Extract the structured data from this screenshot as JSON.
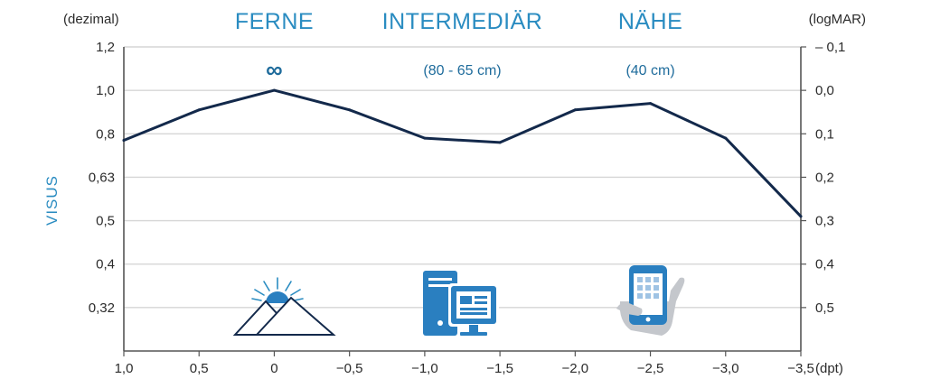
{
  "chart_data": {
    "type": "line",
    "ylabel": "VISUS",
    "left_axis_unit": "(dezimal)",
    "right_axis_unit": "(logMAR)",
    "x_unit": "(dpt)",
    "x_ticks": [
      "1,0",
      "0,5",
      "0",
      "−0,5",
      "−1,0",
      "−1,5",
      "−2,0",
      "−2,5",
      "−3,0",
      "−3,5"
    ],
    "x_values": [
      1.0,
      0.5,
      0,
      -0.5,
      -1.0,
      -1.5,
      -2.0,
      -2.5,
      -3.0,
      -3.5
    ],
    "y_ticks_left": [
      "1,2",
      "1,0",
      "0,8",
      "0,63",
      "0,5",
      "0,4",
      "0,32"
    ],
    "y_ticks_right": [
      "– 0,1",
      "0,0",
      "0,1",
      "0,2",
      "0,3",
      "0,4",
      "0,5"
    ],
    "y_tick_logmar": [
      -0.1,
      0.0,
      0.1,
      0.2,
      0.3,
      0.4,
      0.5
    ],
    "ylim_logmar": [
      -0.1,
      0.6
    ],
    "xlim_dpt": [
      1.0,
      -3.5
    ],
    "grid": true,
    "zones": [
      {
        "label": "FERNE",
        "detail": "∞",
        "x_center": 0.0,
        "icon": "mountain-sun-icon"
      },
      {
        "label": "INTERMEDIÄR",
        "detail": "(80 - 65 cm)",
        "x_center": -1.25,
        "icon": "desktop-computer-icon"
      },
      {
        "label": "NÄHE",
        "detail": "(40 cm)",
        "x_center": -2.5,
        "icon": "smartphone-hand-icon"
      }
    ],
    "series": [
      {
        "color": "#13294b",
        "points": [
          {
            "x": 1.0,
            "y_logmar": 0.115
          },
          {
            "x": 0.5,
            "y_logmar": 0.045
          },
          {
            "x": 0.0,
            "y_logmar": 0.0
          },
          {
            "x": -0.5,
            "y_logmar": 0.045
          },
          {
            "x": -1.0,
            "y_logmar": 0.11
          },
          {
            "x": -1.5,
            "y_logmar": 0.12
          },
          {
            "x": -2.0,
            "y_logmar": 0.045
          },
          {
            "x": -2.5,
            "y_logmar": 0.03
          },
          {
            "x": -3.0,
            "y_logmar": 0.11
          },
          {
            "x": -3.5,
            "y_logmar": 0.29
          }
        ]
      }
    ],
    "colors": {
      "grid": "#d6d6d6",
      "axis": "#555555",
      "accent": "#2a8cc1",
      "icon_blue": "#2a7fc0",
      "icon_grey": "#c4c7cc"
    }
  }
}
